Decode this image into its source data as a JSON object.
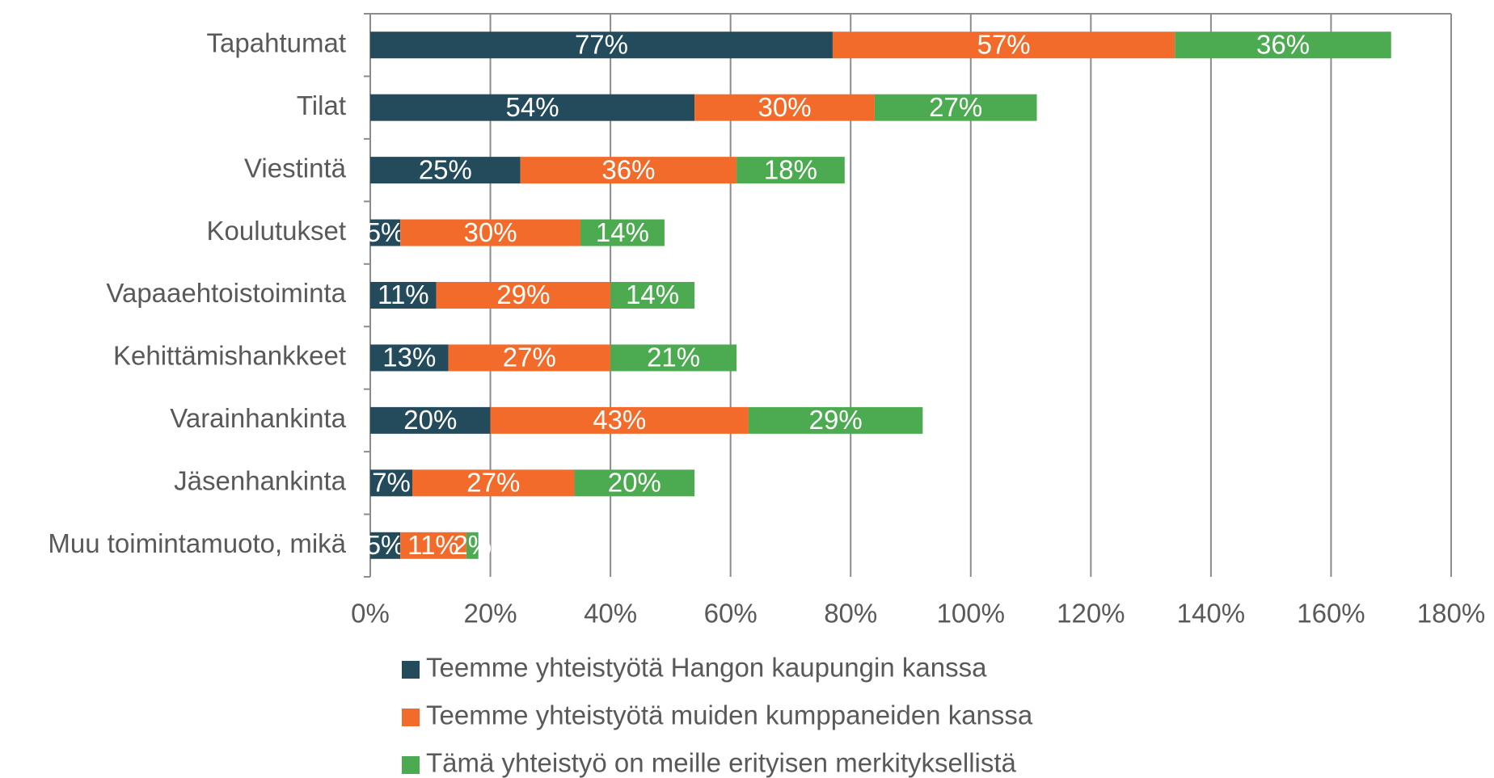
{
  "chart_data": {
    "type": "stacked-barh",
    "categories": [
      "Tapahtumat",
      "Tilat",
      "Viestintä",
      "Koulutukset",
      "Vapaaehtoistoiminta",
      "Kehittämishankkeet",
      "Varainhankinta",
      "Jäsenhankinta",
      "Muu toimintamuoto, mikä"
    ],
    "series": [
      {
        "name": "Teemme yhteistyötä Hangon kaupungin kanssa",
        "color": "#234b5c",
        "values": [
          77,
          54,
          25,
          5,
          11,
          13,
          20,
          7,
          5
        ],
        "value_labels": [
          "77%",
          "54%",
          "25%",
          "5%",
          "11%",
          "13%",
          "20%",
          "7%",
          "5%"
        ]
      },
      {
        "name": "Teemme yhteistyötä muiden kumppaneiden kanssa",
        "color": "#f26b2a",
        "values": [
          57,
          30,
          36,
          30,
          29,
          27,
          43,
          27,
          11
        ],
        "value_labels": [
          "57%",
          "30%",
          "36%",
          "30%",
          "29%",
          "27%",
          "43%",
          "27%",
          "11%"
        ]
      },
      {
        "name": "Tämä yhteistyö on meille erityisen merkityksellistä",
        "color": "#4caa50",
        "values": [
          36,
          27,
          18,
          14,
          14,
          21,
          29,
          20,
          2
        ],
        "value_labels": [
          "36%",
          "27%",
          "18%",
          "14%",
          "14%",
          "21%",
          "29%",
          "20%",
          "2%"
        ]
      }
    ],
    "xlim": [
      0,
      180
    ],
    "xticks": [
      {
        "value": 0,
        "label": "0%"
      },
      {
        "value": 20,
        "label": "20%"
      },
      {
        "value": 40,
        "label": "40%"
      },
      {
        "value": 60,
        "label": "60%"
      },
      {
        "value": 80,
        "label": "80%"
      },
      {
        "value": 100,
        "label": "100%"
      },
      {
        "value": 120,
        "label": "120%"
      },
      {
        "value": 140,
        "label": "140%"
      },
      {
        "value": 160,
        "label": "160%"
      },
      {
        "value": 180,
        "label": "180%"
      }
    ],
    "grid": true,
    "legend": "bottom"
  }
}
